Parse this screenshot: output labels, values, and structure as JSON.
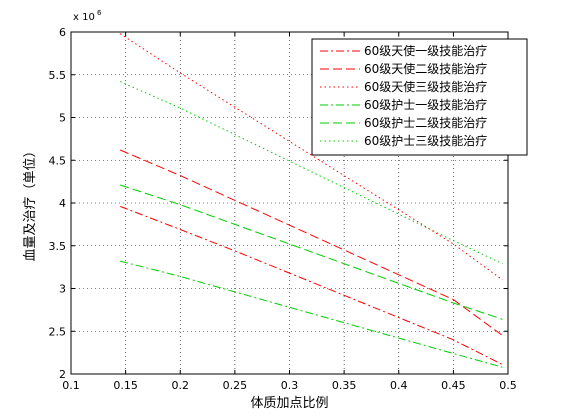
{
  "chart_data": {
    "type": "line",
    "xlabel": "体质加点比例",
    "ylabel": "血量及治疗（单位）",
    "y_multiplier": {
      "base": "x 10",
      "exponent": "6"
    },
    "xlim": [
      0.1,
      0.5
    ],
    "ylim": [
      2,
      6
    ],
    "xticks": [
      0.1,
      0.15,
      0.2,
      0.25,
      0.3,
      0.35,
      0.4,
      0.45,
      0.5
    ],
    "xtick_labels": [
      "0.1",
      "0.15",
      "0.2",
      "0.25",
      "0.3",
      "0.35",
      "0.4",
      "0.45",
      "0.5"
    ],
    "yticks": [
      2,
      2.5,
      3,
      3.5,
      4,
      4.5,
      5,
      5.5,
      6
    ],
    "ytick_labels": [
      "2",
      "2.5",
      "3",
      "3.5",
      "4",
      "4.5",
      "5",
      "5.5",
      "6"
    ],
    "grid": true,
    "legend_position": "top-right",
    "x": [
      0.145,
      0.2,
      0.25,
      0.3,
      0.35,
      0.4,
      0.45,
      0.495
    ],
    "series": [
      {
        "name": "60级天使一级技能治疗",
        "color": "#ff0000",
        "dash": "dashdot",
        "values": [
          3.96,
          3.69,
          3.44,
          3.18,
          2.92,
          2.66,
          2.4,
          2.11
        ]
      },
      {
        "name": "60级天使二级技能治疗",
        "color": "#ff0000",
        "dash": "dashed",
        "values": [
          4.62,
          4.32,
          4.03,
          3.74,
          3.45,
          3.16,
          2.87,
          2.45
        ]
      },
      {
        "name": "60级天使三级技能治疗",
        "color": "#ff0000",
        "dash": "dotted",
        "values": [
          5.98,
          5.52,
          5.12,
          4.72,
          4.32,
          3.92,
          3.52,
          3.1
        ]
      },
      {
        "name": "60级护士一级技能治疗",
        "color": "#00cc00",
        "dash": "dashdot",
        "values": [
          3.32,
          3.14,
          2.96,
          2.78,
          2.6,
          2.42,
          2.24,
          2.08
        ]
      },
      {
        "name": "60级护士二级技能治疗",
        "color": "#00cc00",
        "dash": "dashed",
        "values": [
          4.21,
          3.98,
          3.75,
          3.52,
          3.29,
          3.06,
          2.83,
          2.64
        ]
      },
      {
        "name": "60级护士三级技能治疗",
        "color": "#00cc00",
        "dash": "dotted",
        "values": [
          5.42,
          5.11,
          4.8,
          4.49,
          4.18,
          3.87,
          3.56,
          3.29
        ]
      }
    ]
  }
}
